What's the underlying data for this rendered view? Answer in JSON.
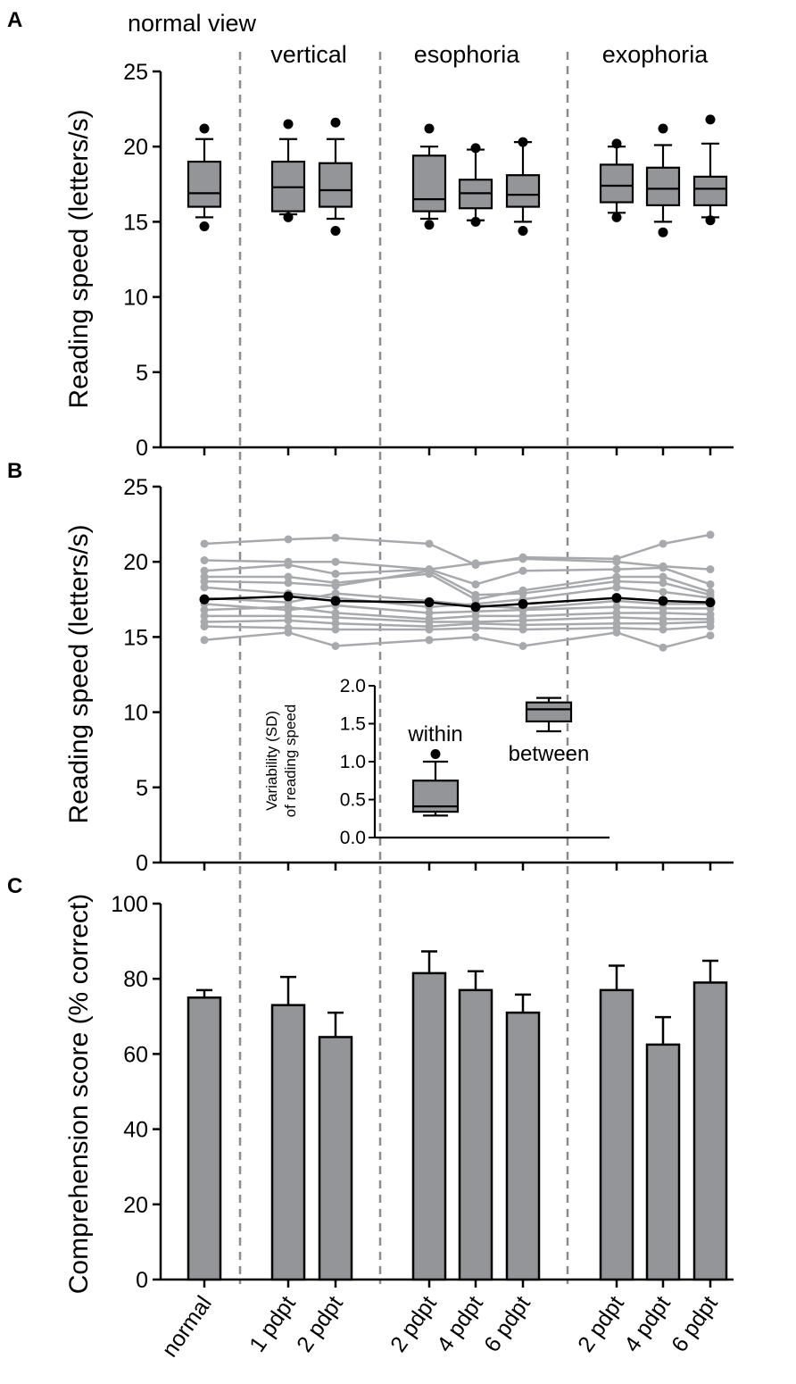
{
  "chart_data": [
    {
      "panel": "A",
      "type": "box",
      "ylabel": "Reading speed (letters/s)",
      "ylim": [
        0,
        25
      ],
      "yticks": [
        0,
        5,
        10,
        15,
        20,
        25
      ],
      "groups": [
        {
          "label": "normal view",
          "positions": [
            0
          ]
        },
        {
          "label": "vertical",
          "positions": [
            1,
            2
          ]
        },
        {
          "label": "esophoria",
          "positions": [
            3,
            4,
            5
          ]
        },
        {
          "label": "exophoria",
          "positions": [
            6,
            7,
            8
          ]
        }
      ],
      "boxes": [
        {
          "q1": 16.0,
          "median": 16.9,
          "q3": 19.0,
          "whisker_low": 15.3,
          "whisker_high": 20.5,
          "outliers": [
            14.7,
            21.2
          ]
        },
        {
          "q1": 15.7,
          "median": 17.3,
          "q3": 19.0,
          "whisker_low": 15.5,
          "whisker_high": 20.5,
          "outliers": [
            15.3,
            21.5
          ]
        },
        {
          "q1": 16.0,
          "median": 17.1,
          "q3": 18.9,
          "whisker_low": 15.2,
          "whisker_high": 20.5,
          "outliers": [
            14.4,
            21.6
          ]
        },
        {
          "q1": 15.7,
          "median": 16.5,
          "q3": 19.4,
          "whisker_low": 15.2,
          "whisker_high": 20.0,
          "outliers": [
            14.8,
            21.2
          ]
        },
        {
          "q1": 15.9,
          "median": 16.9,
          "q3": 17.8,
          "whisker_low": 15.1,
          "whisker_high": 19.8,
          "outliers": [
            15.0,
            19.9
          ]
        },
        {
          "q1": 16.0,
          "median": 16.8,
          "q3": 18.1,
          "whisker_low": 15.0,
          "whisker_high": 20.3,
          "outliers": [
            14.4,
            20.3
          ]
        },
        {
          "q1": 16.3,
          "median": 17.4,
          "q3": 18.8,
          "whisker_low": 15.6,
          "whisker_high": 20.0,
          "outliers": [
            15.3,
            20.2
          ]
        },
        {
          "q1": 16.1,
          "median": 17.2,
          "q3": 18.6,
          "whisker_low": 15.0,
          "whisker_high": 20.1,
          "outliers": [
            14.3,
            21.2
          ]
        },
        {
          "q1": 16.1,
          "median": 17.2,
          "q3": 18.0,
          "whisker_low": 15.3,
          "whisker_high": 20.2,
          "outliers": [
            15.1,
            21.8
          ]
        }
      ]
    },
    {
      "panel": "B",
      "type": "line",
      "ylabel": "Reading speed (letters/s)",
      "ylim": [
        0,
        25
      ],
      "yticks": [
        0,
        5,
        10,
        15,
        20,
        25
      ],
      "x": [
        0,
        1,
        2,
        3,
        4,
        5,
        6,
        7,
        8
      ],
      "mean": [
        17.5,
        17.7,
        17.4,
        17.3,
        17.0,
        17.2,
        17.6,
        17.4,
        17.3
      ],
      "subjects": [
        [
          21.2,
          21.5,
          21.6,
          21.2,
          19.8,
          20.3,
          20.2,
          21.2,
          21.8
        ],
        [
          20.1,
          20.0,
          20.0,
          19.5,
          19.9,
          20.2,
          20.0,
          19.7,
          19.5
        ],
        [
          19.4,
          19.8,
          19.2,
          19.5,
          18.5,
          19.4,
          19.5,
          19.6,
          18.5
        ],
        [
          19.0,
          19.0,
          18.6,
          19.2,
          17.5,
          18.1,
          19.0,
          19.0,
          18.0
        ],
        [
          18.7,
          18.6,
          18.4,
          19.4,
          17.8,
          17.9,
          18.7,
          18.6,
          17.8
        ],
        [
          18.3,
          17.9,
          17.6,
          17.0,
          17.2,
          17.5,
          18.3,
          18.0,
          17.6
        ],
        [
          17.6,
          17.3,
          17.9,
          17.4,
          17.1,
          16.9,
          17.4,
          17.2,
          17.2
        ],
        [
          17.2,
          16.8,
          17.1,
          16.6,
          16.7,
          16.8,
          17.0,
          16.9,
          16.9
        ],
        [
          16.8,
          17.0,
          16.6,
          16.2,
          16.4,
          16.4,
          16.6,
          16.6,
          16.5
        ],
        [
          16.4,
          16.4,
          16.3,
          16.0,
          16.0,
          16.1,
          16.3,
          16.2,
          16.2
        ],
        [
          16.0,
          16.1,
          15.9,
          15.7,
          15.9,
          15.8,
          15.9,
          15.9,
          16.0
        ],
        [
          15.7,
          15.6,
          15.5,
          15.5,
          15.6,
          15.5,
          15.6,
          15.5,
          15.7
        ],
        [
          14.8,
          15.3,
          14.4,
          14.8,
          15.0,
          14.4,
          15.3,
          14.3,
          15.1
        ]
      ],
      "inset": {
        "ylabel_line1": "Variability (SD)",
        "ylabel_line2": "of reading speed",
        "ylim": [
          0.0,
          2.0
        ],
        "yticks": [
          "0.0",
          "0.5",
          "1.0",
          "1.5",
          "2.0"
        ],
        "boxes": [
          {
            "label": "within",
            "q1": 0.34,
            "median": 0.41,
            "q3": 0.75,
            "whisker_low": 0.29,
            "whisker_high": 1.0,
            "outliers": [
              1.1
            ]
          },
          {
            "label": "between",
            "q1": 1.53,
            "median": 1.69,
            "q3": 1.78,
            "whisker_low": 1.4,
            "whisker_high": 1.84,
            "outliers": []
          }
        ]
      }
    },
    {
      "panel": "C",
      "type": "bar",
      "ylabel": "Comprehension score (% correct)",
      "ylim": [
        0,
        100
      ],
      "yticks": [
        0,
        20,
        40,
        60,
        80,
        100
      ],
      "categories": [
        "normal",
        "1 pdpt",
        "2 pdpt",
        "2 pdpt",
        "4 pdpt",
        "6 pdpt",
        "2 pdpt",
        "4 pdpt",
        "6 pdpt"
      ],
      "values": [
        75,
        73,
        64.5,
        81.5,
        77,
        71,
        77,
        62.5,
        79
      ],
      "errors": [
        2,
        7.5,
        6.5,
        5.8,
        5,
        4.8,
        6.5,
        7.3,
        5.8
      ]
    }
  ],
  "colors": {
    "box_fill": "#939598",
    "subject_line": "#a7a9ac",
    "dashed_line": "#8c8c8c",
    "axis": "#000000"
  }
}
